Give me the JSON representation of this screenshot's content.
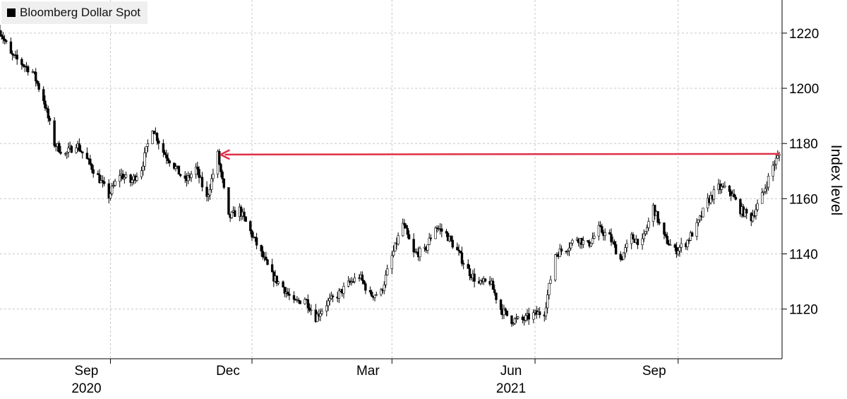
{
  "chart_data": {
    "type": "candlestick",
    "title": "",
    "legend": {
      "label": "Bloomberg Dollar Spot",
      "color": "#000000",
      "placement": "top-left"
    },
    "xlabel": "",
    "ylabel": "Index level",
    "ylim": [
      1102,
      1232
    ],
    "yticks": [
      1120,
      1140,
      1160,
      1180,
      1200,
      1220
    ],
    "grid": true,
    "date_range": [
      "2020-06-22",
      "2021-11-05"
    ],
    "xticks": [
      {
        "date": "2020-09-01",
        "label": "Sep",
        "sublabel": "2020"
      },
      {
        "date": "2020-12-01",
        "label": "Dec",
        "sublabel": ""
      },
      {
        "date": "2021-03-01",
        "label": "Mar",
        "sublabel": ""
      },
      {
        "date": "2021-06-01",
        "label": "Jun",
        "sublabel": "2021"
      },
      {
        "date": "2021-09-01",
        "label": "Sep",
        "sublabel": ""
      }
    ],
    "keypoints": [
      [
        "2020-06-22",
        1221
      ],
      [
        "2020-06-29",
        1212
      ],
      [
        "2020-07-06",
        1209
      ],
      [
        "2020-07-13",
        1206
      ],
      [
        "2020-07-20",
        1196
      ],
      [
        "2020-07-27",
        1180
      ],
      [
        "2020-08-03",
        1176
      ],
      [
        "2020-08-10",
        1180
      ],
      [
        "2020-08-17",
        1174
      ],
      [
        "2020-08-24",
        1168
      ],
      [
        "2020-08-31",
        1161
      ],
      [
        "2020-09-07",
        1169
      ],
      [
        "2020-09-14",
        1166
      ],
      [
        "2020-09-21",
        1171
      ],
      [
        "2020-09-28",
        1186
      ],
      [
        "2020-10-05",
        1177
      ],
      [
        "2020-10-12",
        1172
      ],
      [
        "2020-10-19",
        1166
      ],
      [
        "2020-10-26",
        1171
      ],
      [
        "2020-11-02",
        1160
      ],
      [
        "2020-11-09",
        1176
      ],
      [
        "2020-11-16",
        1153
      ],
      [
        "2020-11-23",
        1156
      ],
      [
        "2020-11-30",
        1148
      ],
      [
        "2020-12-07",
        1140
      ],
      [
        "2020-12-14",
        1132
      ],
      [
        "2020-12-21",
        1128
      ],
      [
        "2020-12-28",
        1122
      ],
      [
        "2021-01-04",
        1124
      ],
      [
        "2021-01-11",
        1117
      ],
      [
        "2021-01-18",
        1122
      ],
      [
        "2021-01-25",
        1125
      ],
      [
        "2021-02-01",
        1129
      ],
      [
        "2021-02-08",
        1132
      ],
      [
        "2021-02-15",
        1125
      ],
      [
        "2021-02-22",
        1126
      ],
      [
        "2021-03-01",
        1139
      ],
      [
        "2021-03-08",
        1151
      ],
      [
        "2021-03-15",
        1140
      ],
      [
        "2021-03-22",
        1141
      ],
      [
        "2021-03-29",
        1150
      ],
      [
        "2021-04-05",
        1147
      ],
      [
        "2021-04-12",
        1141
      ],
      [
        "2021-04-19",
        1134
      ],
      [
        "2021-04-26",
        1129
      ],
      [
        "2021-05-03",
        1130
      ],
      [
        "2021-05-10",
        1120
      ],
      [
        "2021-05-17",
        1116
      ],
      [
        "2021-05-24",
        1116
      ],
      [
        "2021-05-31",
        1118
      ],
      [
        "2021-06-07",
        1119
      ],
      [
        "2021-06-14",
        1140
      ],
      [
        "2021-06-21",
        1142
      ],
      [
        "2021-06-28",
        1146
      ],
      [
        "2021-07-05",
        1143
      ],
      [
        "2021-07-12",
        1149
      ],
      [
        "2021-07-19",
        1146
      ],
      [
        "2021-07-26",
        1138
      ],
      [
        "2021-08-02",
        1146
      ],
      [
        "2021-08-09",
        1144
      ],
      [
        "2021-08-16",
        1157
      ],
      [
        "2021-08-23",
        1146
      ],
      [
        "2021-08-30",
        1141
      ],
      [
        "2021-09-06",
        1144
      ],
      [
        "2021-09-13",
        1150
      ],
      [
        "2021-09-20",
        1159
      ],
      [
        "2021-09-27",
        1164
      ],
      [
        "2021-10-04",
        1163
      ],
      [
        "2021-10-11",
        1156
      ],
      [
        "2021-10-18",
        1153
      ],
      [
        "2021-10-25",
        1161
      ],
      [
        "2021-11-01",
        1172
      ],
      [
        "2021-11-05",
        1176
      ]
    ],
    "annotations": [
      {
        "type": "arrow",
        "color": "#e03048",
        "from": [
          "2021-11-05",
          1176
        ],
        "to": [
          "2020-11-09",
          1176
        ]
      }
    ]
  }
}
